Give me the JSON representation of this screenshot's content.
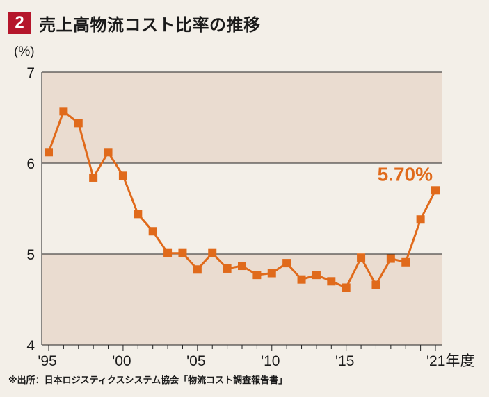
{
  "header": {
    "number": "2",
    "title": "売上高物流コスト比率の推移"
  },
  "source": "※出所：日本ロジスティクスシステム協会「物流コスト調査報告書」",
  "colors": {
    "line": "#e06a1b",
    "band": "#eadcd0",
    "badge": "#b5162b"
  },
  "chart_data": {
    "type": "line",
    "title": "売上高物流コスト比率の推移",
    "ylabel": "(%)",
    "xlabel": "",
    "ylim": [
      4,
      7
    ],
    "yticks": [
      "4",
      "5",
      "6",
      "7"
    ],
    "xlim": [
      1995,
      2021
    ],
    "xticks": [
      {
        "value": 1995,
        "label": "'95"
      },
      {
        "value": 2000,
        "label": "'00"
      },
      {
        "value": 2005,
        "label": "'05"
      },
      {
        "value": 2010,
        "label": "'10"
      },
      {
        "value": 2015,
        "label": "'15"
      },
      {
        "value": 2021,
        "label": "'21年度"
      }
    ],
    "grid": true,
    "x": [
      1995,
      1996,
      1997,
      1998,
      1999,
      2000,
      2001,
      2002,
      2003,
      2004,
      2005,
      2006,
      2007,
      2008,
      2009,
      2010,
      2011,
      2012,
      2013,
      2014,
      2015,
      2016,
      2017,
      2018,
      2019,
      2020,
      2021
    ],
    "series": [
      {
        "values": [
          6.12,
          6.57,
          6.44,
          5.84,
          6.12,
          5.86,
          5.44,
          5.25,
          5.01,
          5.01,
          4.83,
          5.01,
          4.84,
          4.87,
          4.77,
          4.79,
          4.9,
          4.72,
          4.77,
          4.7,
          4.63,
          4.96,
          4.66,
          4.95,
          4.91,
          5.38,
          5.7
        ]
      }
    ],
    "annotation": {
      "text": "5.70%",
      "x": 2021,
      "y": 5.7
    }
  }
}
